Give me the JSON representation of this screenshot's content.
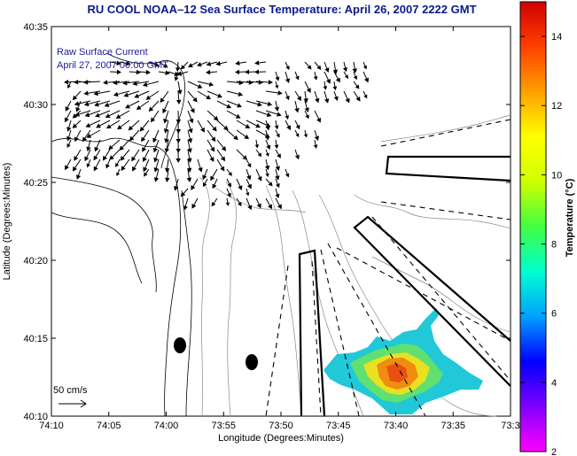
{
  "title": "RU COOL  NOAA–12  Sea Surface Temperature:  April 26, 2007 2222 GMT",
  "annotation": {
    "line1": "Raw Surface Current",
    "line2": "April 27, 2007 00:00 GMT"
  },
  "axes": {
    "xlabel": "Longitude (Degrees:Minutes)",
    "ylabel": "Latitude (Degrees:Minutes)",
    "xticks": [
      "74:10",
      "74:05",
      "74:00",
      "73:55",
      "73:50",
      "73:45",
      "73:40",
      "73:35",
      "73:3"
    ],
    "yticks": [
      "40:35",
      "40:30",
      "40:25",
      "40:20",
      "40:15",
      "40:10"
    ]
  },
  "scale": {
    "label": "50 cm/s"
  },
  "colorbar": {
    "label": "Temperature (°C)",
    "ticks": [
      "14",
      "12",
      "10",
      "8",
      "6",
      "4",
      "2"
    ],
    "range": [
      2,
      15
    ],
    "stops": [
      "#ff00ff",
      "#8000ff",
      "#0000ff",
      "#00a0ff",
      "#00ffd0",
      "#40ff40",
      "#d0ff00",
      "#ffff00",
      "#ffa000",
      "#ff4000",
      "#d00000"
    ]
  },
  "colors": {
    "title": "#0a1a8c",
    "annotation": "#1a1a9c",
    "sst_warm": "#f08c10",
    "sst_cool": "#20d0e0"
  }
}
